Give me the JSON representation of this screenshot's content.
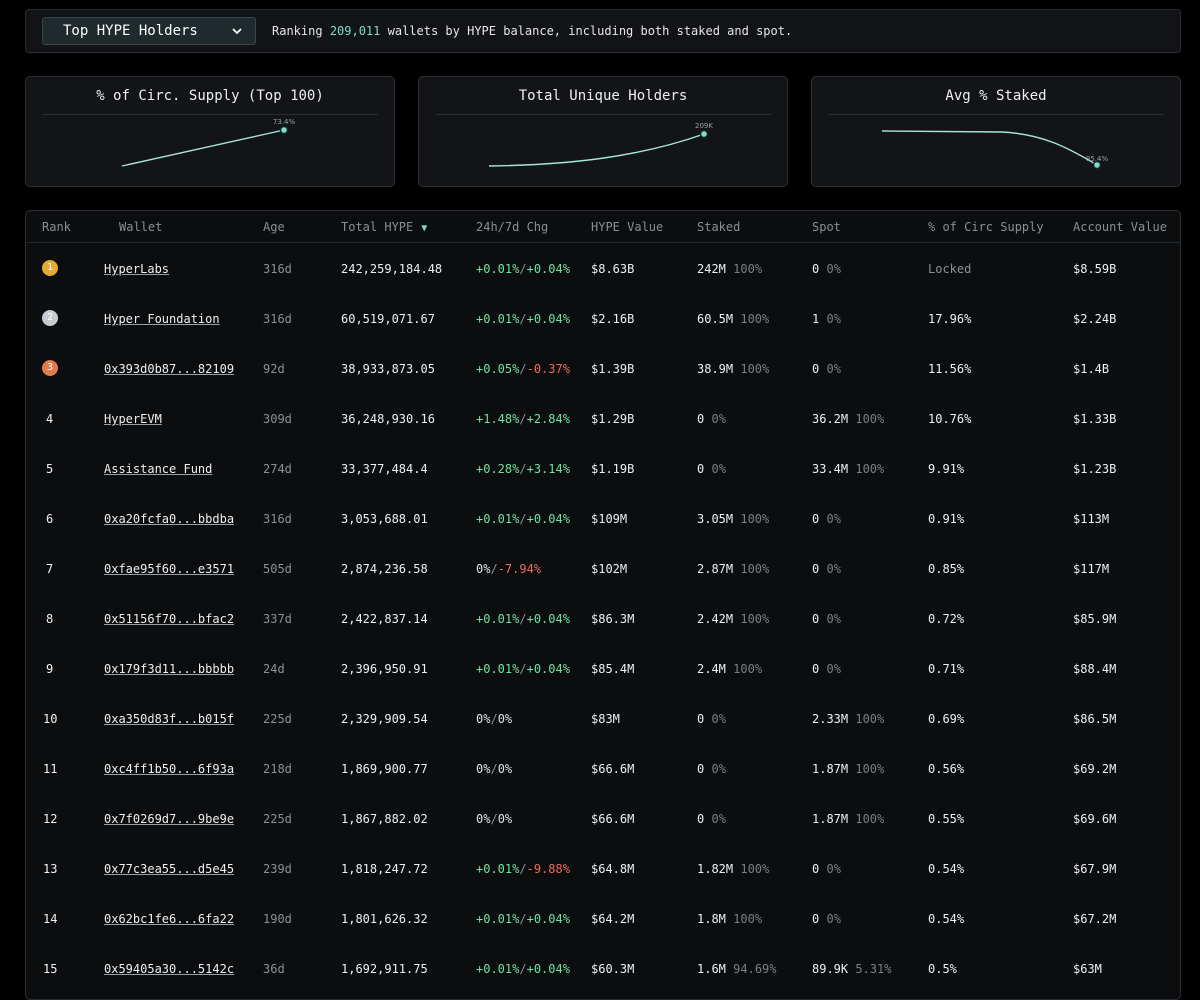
{
  "header": {
    "dropdown_label": "Top HYPE Holders",
    "ranking_prefix": "Ranking",
    "ranking_count": "209,011",
    "ranking_suffix": "wallets by HYPE balance, including both staked and spot."
  },
  "cards": [
    {
      "title": "% of Circ. Supply (Top 100)",
      "point_label": "73.4%"
    },
    {
      "title": "Total Unique Holders",
      "point_label": "209K"
    },
    {
      "title": "Avg % Staked",
      "point_label": "95.4%"
    }
  ],
  "table": {
    "columns": [
      "Rank",
      "Wallet",
      "Age",
      "Total HYPE",
      "24h/7d Chg",
      "HYPE Value",
      "Staked",
      "Spot",
      "% of Circ Supply",
      "Account Value"
    ],
    "rows": [
      {
        "rank": "1",
        "wallet": "HyperLabs",
        "age": "316d",
        "total": "242,259,184.48",
        "chg24": "+0.01%",
        "chg7": "+0.04%",
        "value": "$8.63B",
        "staked": "242M",
        "staked_pct": "100%",
        "spot": "0",
        "spot_pct": "0%",
        "circ": "Locked",
        "account": "$8.59B"
      },
      {
        "rank": "2",
        "wallet": "Hyper Foundation",
        "age": "316d",
        "total": "60,519,071.67",
        "chg24": "+0.01%",
        "chg7": "+0.04%",
        "value": "$2.16B",
        "staked": "60.5M",
        "staked_pct": "100%",
        "spot": "1",
        "spot_pct": "0%",
        "circ": "17.96%",
        "account": "$2.24B"
      },
      {
        "rank": "3",
        "wallet": "0x393d0b87...82109",
        "age": "92d",
        "total": "38,933,873.05",
        "chg24": "+0.05%",
        "chg7": "-0.37%",
        "value": "$1.39B",
        "staked": "38.9M",
        "staked_pct": "100%",
        "spot": "0",
        "spot_pct": "0%",
        "circ": "11.56%",
        "account": "$1.4B"
      },
      {
        "rank": "4",
        "wallet": "HyperEVM",
        "age": "309d",
        "total": "36,248,930.16",
        "chg24": "+1.48%",
        "chg7": "+2.84%",
        "value": "$1.29B",
        "staked": "0",
        "staked_pct": "0%",
        "spot": "36.2M",
        "spot_pct": "100%",
        "circ": "10.76%",
        "account": "$1.33B"
      },
      {
        "rank": "5",
        "wallet": "Assistance Fund",
        "age": "274d",
        "total": "33,377,484.4",
        "chg24": "+0.28%",
        "chg7": "+3.14%",
        "value": "$1.19B",
        "staked": "0",
        "staked_pct": "0%",
        "spot": "33.4M",
        "spot_pct": "100%",
        "circ": "9.91%",
        "account": "$1.23B"
      },
      {
        "rank": "6",
        "wallet": "0xa20fcfa0...bbdba",
        "age": "316d",
        "total": "3,053,688.01",
        "chg24": "+0.01%",
        "chg7": "+0.04%",
        "value": "$109M",
        "staked": "3.05M",
        "staked_pct": "100%",
        "spot": "0",
        "spot_pct": "0%",
        "circ": "0.91%",
        "account": "$113M"
      },
      {
        "rank": "7",
        "wallet": "0xfae95f60...e3571",
        "age": "505d",
        "total": "2,874,236.58",
        "chg24": "0%",
        "chg7": "-7.94%",
        "value": "$102M",
        "staked": "2.87M",
        "staked_pct": "100%",
        "spot": "0",
        "spot_pct": "0%",
        "circ": "0.85%",
        "account": "$117M"
      },
      {
        "rank": "8",
        "wallet": "0x51156f70...bfac2",
        "age": "337d",
        "total": "2,422,837.14",
        "chg24": "+0.01%",
        "chg7": "+0.04%",
        "value": "$86.3M",
        "staked": "2.42M",
        "staked_pct": "100%",
        "spot": "0",
        "spot_pct": "0%",
        "circ": "0.72%",
        "account": "$85.9M"
      },
      {
        "rank": "9",
        "wallet": "0x179f3d11...bbbbb",
        "age": "24d",
        "total": "2,396,950.91",
        "chg24": "+0.01%",
        "chg7": "+0.04%",
        "value": "$85.4M",
        "staked": "2.4M",
        "staked_pct": "100%",
        "spot": "0",
        "spot_pct": "0%",
        "circ": "0.71%",
        "account": "$88.4M"
      },
      {
        "rank": "10",
        "wallet": "0xa350d83f...b015f",
        "age": "225d",
        "total": "2,329,909.54",
        "chg24": "0%",
        "chg7": "0%",
        "value": "$83M",
        "staked": "0",
        "staked_pct": "0%",
        "spot": "2.33M",
        "spot_pct": "100%",
        "circ": "0.69%",
        "account": "$86.5M"
      },
      {
        "rank": "11",
        "wallet": "0xc4ff1b50...6f93a",
        "age": "218d",
        "total": "1,869,900.77",
        "chg24": "0%",
        "chg7": "0%",
        "value": "$66.6M",
        "staked": "0",
        "staked_pct": "0%",
        "spot": "1.87M",
        "spot_pct": "100%",
        "circ": "0.56%",
        "account": "$69.2M"
      },
      {
        "rank": "12",
        "wallet": "0x7f0269d7...9be9e",
        "age": "225d",
        "total": "1,867,882.02",
        "chg24": "0%",
        "chg7": "0%",
        "value": "$66.6M",
        "staked": "0",
        "staked_pct": "0%",
        "spot": "1.87M",
        "spot_pct": "100%",
        "circ": "0.55%",
        "account": "$69.6M"
      },
      {
        "rank": "13",
        "wallet": "0x77c3ea55...d5e45",
        "age": "239d",
        "total": "1,818,247.72",
        "chg24": "+0.01%",
        "chg7": "-9.88%",
        "value": "$64.8M",
        "staked": "1.82M",
        "staked_pct": "100%",
        "spot": "0",
        "spot_pct": "0%",
        "circ": "0.54%",
        "account": "$67.9M"
      },
      {
        "rank": "14",
        "wallet": "0x62bc1fe6...6fa22",
        "age": "190d",
        "total": "1,801,626.32",
        "chg24": "+0.01%",
        "chg7": "+0.04%",
        "value": "$64.2M",
        "staked": "1.8M",
        "staked_pct": "100%",
        "spot": "0",
        "spot_pct": "0%",
        "circ": "0.54%",
        "account": "$67.2M"
      },
      {
        "rank": "15",
        "wallet": "0x59405a30...5142c",
        "age": "36d",
        "total": "1,692,911.75",
        "chg24": "+0.01%",
        "chg7": "+0.04%",
        "value": "$60.3M",
        "staked": "1.6M",
        "staked_pct": "94.69%",
        "spot": "89.9K",
        "spot_pct": "5.31%",
        "circ": "0.5%",
        "account": "$63M"
      }
    ]
  },
  "colors": {
    "accent": "#7fdcc8",
    "positive": "#6fe3a0",
    "negative": "#ef6b5b",
    "medal_gold": "#e8a838",
    "medal_silver": "#c7cbd1",
    "medal_bronze": "#e07b4c"
  },
  "icons": {
    "dropdown": "chevron-down-icon",
    "sort": "sort-desc-icon"
  }
}
